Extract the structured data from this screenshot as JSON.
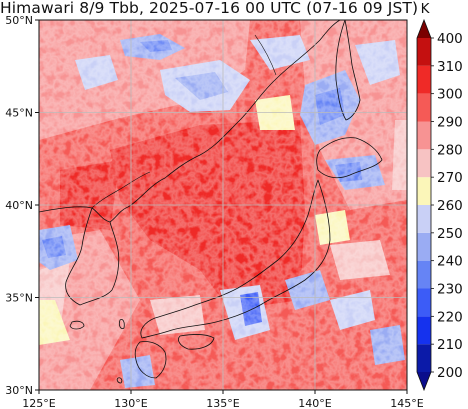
{
  "title": "Himawari 8/9 Tbb, 2025-07-16 00 UTC (07-16 09 JST)",
  "map": {
    "lon_range": [
      125,
      145
    ],
    "lat_range": [
      30,
      50
    ],
    "lon_ticks": [
      125,
      130,
      135,
      140,
      145
    ],
    "lon_tick_labels": [
      "125°E",
      "130°E",
      "135°E",
      "140°E",
      "145°E"
    ],
    "lat_ticks": [
      30,
      35,
      40,
      45,
      50
    ],
    "lat_tick_labels": [
      "30°N",
      "35°N",
      "40°N",
      "45°N",
      "50°N"
    ],
    "grid": true,
    "variable": "Brightness temperature (Tbb)",
    "coastlines": true
  },
  "colorbar": {
    "unit": "K",
    "levels": [
      200,
      210,
      220,
      230,
      240,
      250,
      260,
      270,
      280,
      290,
      300,
      310,
      400
    ],
    "level_labels": [
      "200",
      "210",
      "220",
      "230",
      "240",
      "250",
      "260",
      "270",
      "280",
      "290",
      "300",
      "310",
      "400"
    ],
    "colors": [
      "#0b1aa8",
      "#1532ee",
      "#3c5cf7",
      "#6684f5",
      "#9aacf3",
      "#c9d0f6",
      "#fbf6b9",
      "#f7c3c3",
      "#f79393",
      "#f55a56",
      "#ef2a27",
      "#c41010",
      "#8c0505"
    ],
    "extend_low_color": "#0a0d8c",
    "extend_high_color": "#7a0000",
    "position": "right"
  }
}
